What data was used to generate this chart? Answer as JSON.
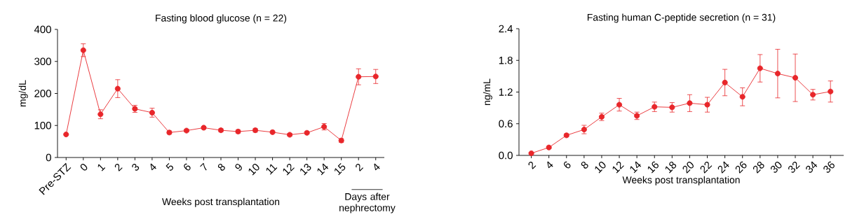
{
  "chart_data": [
    {
      "type": "line",
      "title": "Fasting blood glucose (n = 22)",
      "xlabel": "Weeks post transplantation",
      "ylabel": "mg/dL",
      "categories": [
        "Pre-STZ",
        "0",
        "1",
        "2",
        "3",
        "4",
        "5",
        "6",
        "7",
        "8",
        "9",
        "10",
        "11",
        "12",
        "13",
        "14",
        "15",
        "2",
        "4"
      ],
      "series": [
        {
          "color": "#e8262a",
          "values": [
            72,
            335,
            135,
            215,
            152,
            140,
            78,
            84,
            93,
            85,
            81,
            85,
            79,
            71,
            77,
            96,
            53,
            252,
            253
          ],
          "errors": [
            null,
            20,
            14,
            28,
            11,
            14,
            5,
            4,
            4,
            5,
            5,
            6,
            4,
            4,
            4,
            10,
            6,
            25,
            22
          ]
        }
      ],
      "ylim": [
        0,
        400
      ],
      "yticks": [
        0,
        100,
        200,
        300,
        400
      ],
      "marker": "circle",
      "line_style": "solid",
      "grid": false,
      "annotations": [
        "Days after nephrectomy"
      ]
    },
    {
      "type": "line",
      "title": "Fasting human C-peptide secretion (n = 31)",
      "xlabel": "Weeks post transplantation",
      "ylabel": "ng/mL",
      "categories": [
        "2",
        "4",
        "6",
        "8",
        "10",
        "12",
        "14",
        "16",
        "18",
        "20",
        "22",
        "24",
        "26",
        "28",
        "30",
        "32",
        "34",
        "36"
      ],
      "series": [
        {
          "color": "#e8262a",
          "values": [
            0.04,
            0.15,
            0.38,
            0.49,
            0.73,
            0.96,
            0.75,
            0.92,
            0.91,
            0.99,
            0.96,
            1.38,
            1.11,
            1.65,
            1.55,
            1.47,
            1.15,
            1.21
          ],
          "errors": [
            0.02,
            0.02,
            0.03,
            0.08,
            0.07,
            0.12,
            0.07,
            0.09,
            0.09,
            0.16,
            0.14,
            0.25,
            0.17,
            0.26,
            0.46,
            0.45,
            0.1,
            0.2
          ]
        }
      ],
      "ylim": [
        0,
        2.4
      ],
      "yticks": [
        {
          "value": 0,
          "label": "0.0"
        },
        0.6,
        1.2,
        1.8,
        2.4
      ],
      "marker": "circle",
      "line_style": "solid",
      "grid": false
    }
  ]
}
